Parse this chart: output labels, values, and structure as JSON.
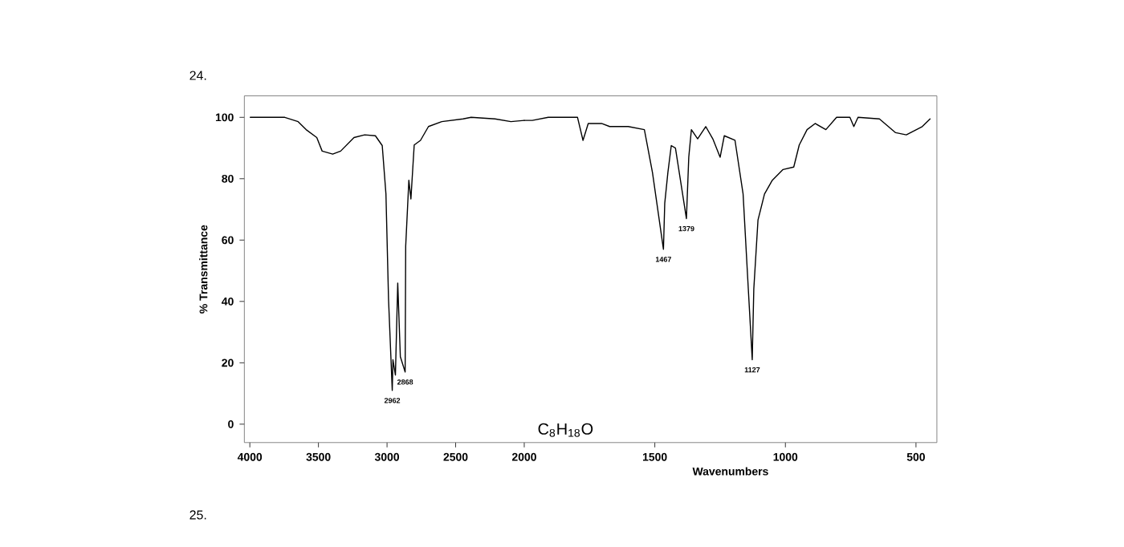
{
  "chart_data": [
    {
      "type": "line",
      "title": "24.",
      "ylabel": "% Transmittance",
      "xlim": [
        4040,
        2000
      ],
      "ylim": [
        -6,
        107
      ],
      "xticks": [
        4000,
        3500,
        3000,
        2500,
        2000
      ],
      "yticks": [
        0,
        20,
        40,
        60,
        80,
        100
      ],
      "series": [
        {
          "color": "#000000",
          "x": [
            3997,
            3745,
            3648,
            3590,
            3512,
            3473,
            3396,
            3338,
            3241,
            3163,
            3085,
            3035,
            3008,
            2989,
            2962,
            2957,
            2939,
            2922,
            2903,
            2868,
            2864,
            2841,
            2826,
            2802,
            2756,
            2698,
            2601,
            2446,
            2387,
            2213,
            2097,
            2000
          ],
          "values": [
            100,
            100,
            98.6,
            96,
            93.4,
            89,
            88,
            89,
            93.4,
            94.3,
            94,
            90.8,
            75,
            40.6,
            11,
            21,
            16,
            46,
            22,
            17,
            58,
            79.5,
            73.4,
            91,
            92.5,
            97,
            98.6,
            99.5,
            100,
            99.5,
            98.6,
            99
          ]
        }
      ],
      "annotations": [
        {
          "text": "2962",
          "x": 2962,
          "y": 11
        },
        {
          "text": "2868",
          "x": 2868,
          "y": 17
        }
      ],
      "grid": false,
      "line_style": "solid",
      "marker": "none"
    },
    {
      "type": "line",
      "xlabel": "Wavenumbers",
      "xlim": [
        2000,
        420
      ],
      "ylim": [
        -6,
        107
      ],
      "xticks": [
        1500,
        1000,
        500
      ],
      "tick_labels": "x",
      "series": [
        {
          "color": "#000000",
          "x": [
            2000,
            1969,
            1908,
            1796,
            1775,
            1755,
            1704,
            1673,
            1602,
            1540,
            1509,
            1467,
            1462,
            1450,
            1437,
            1421,
            1379,
            1370,
            1360,
            1336,
            1305,
            1278,
            1250,
            1234,
            1193,
            1162,
            1142,
            1127,
            1121,
            1105,
            1080,
            1050,
            1009,
            968,
            947,
            917,
            886,
            845,
            804,
            753,
            738,
            722,
            640,
            578,
            537,
            476,
            446
          ],
          "values": [
            99,
            99,
            100,
            100,
            92.5,
            98,
            98,
            97,
            97,
            96,
            82,
            57,
            72,
            82,
            90.8,
            90,
            67,
            87,
            96,
            93,
            97,
            93,
            87,
            94,
            92.5,
            75,
            44,
            21,
            44,
            66.5,
            75,
            79.5,
            83,
            83.8,
            91,
            96,
            98,
            96,
            100,
            100,
            97,
            100,
            99.5,
            95,
            94.3,
            97,
            99.5
          ]
        }
      ],
      "annotations": [
        "C$_{8}$H$_{18}$O",
        "25.",
        {
          "text": "1467",
          "x": 1467,
          "y": 57
        },
        {
          "text": "1379",
          "x": 1379,
          "y": 67
        },
        {
          "text": "1127",
          "x": 1127,
          "y": 21
        }
      ],
      "grid": false,
      "line_style": "solid",
      "marker": "none"
    }
  ]
}
